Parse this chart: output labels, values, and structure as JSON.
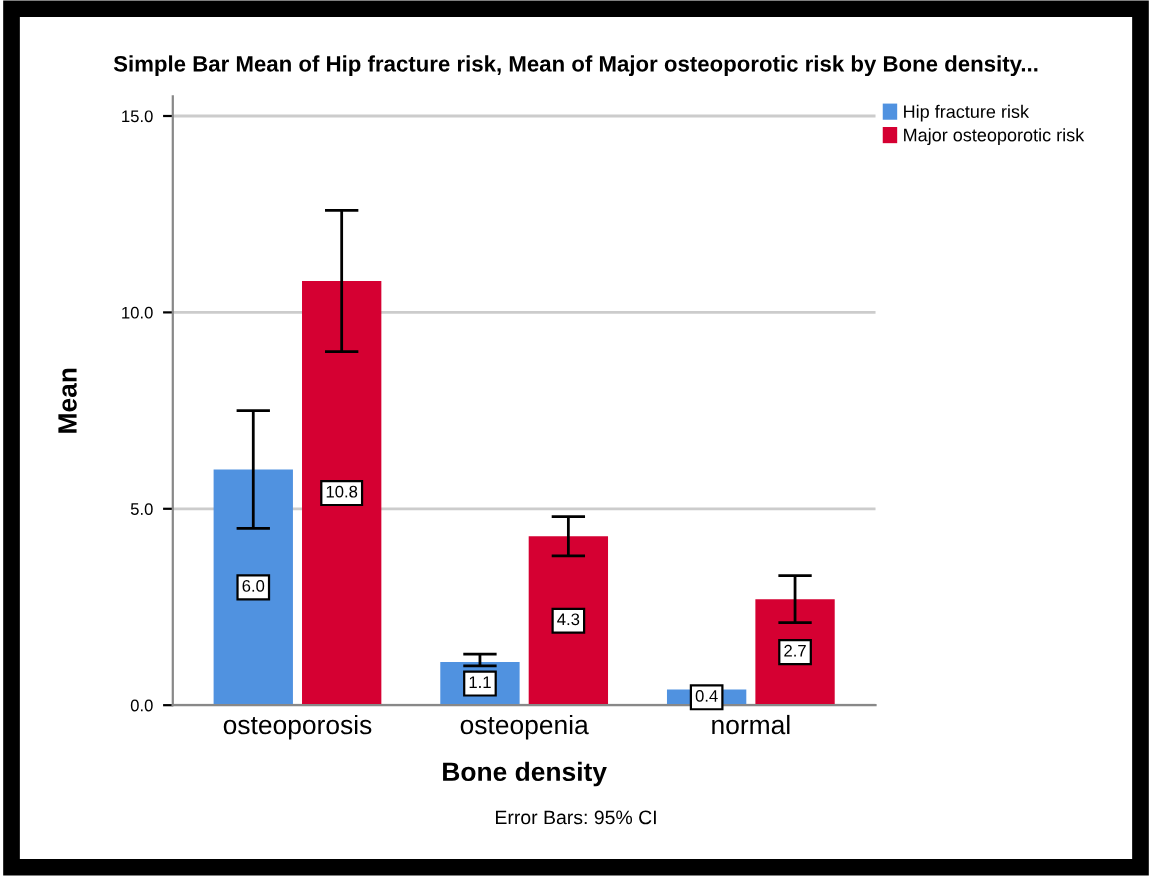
{
  "chart_data": {
    "type": "bar",
    "title": "Simple Bar Mean of Hip fracture risk, Mean of Major osteoporotic risk by Bone density...",
    "xlabel": "Bone density",
    "ylabel": "Mean",
    "categories": [
      "osteoporosis",
      "osteopenia",
      "normal"
    ],
    "series": [
      {
        "name": "Hip fracture risk",
        "color": "#5092e0",
        "values": [
          6.0,
          1.1,
          0.4
        ],
        "value_labels": [
          "6.0",
          "1.1",
          "0.4"
        ],
        "errors": [
          [
            4.5,
            7.5
          ],
          [
            1.0,
            1.3
          ],
          null
        ]
      },
      {
        "name": "Major osteoporotic risk",
        "color": "#d50032",
        "values": [
          10.8,
          4.3,
          2.7
        ],
        "value_labels": [
          "10.8",
          "4.3",
          "2.7"
        ],
        "errors": [
          [
            9.0,
            12.6
          ],
          [
            3.8,
            4.8
          ],
          [
            2.1,
            3.3
          ]
        ]
      }
    ],
    "ylim": [
      0,
      15.5
    ],
    "yticks": [
      {
        "value": 0,
        "label": "0.0"
      },
      {
        "value": 5,
        "label": "5.0"
      },
      {
        "value": 10,
        "label": "10.0"
      },
      {
        "value": 15,
        "label": "15.0"
      }
    ],
    "grid": "y",
    "legend": "top right",
    "annotations": [
      "Error Bars: 95% CI"
    ]
  }
}
